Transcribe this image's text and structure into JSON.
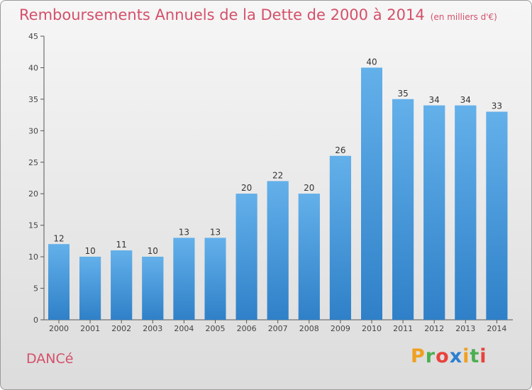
{
  "chart_data": {
    "type": "bar",
    "title": "Remboursements Annuels de la Dette de 2000 à 2014",
    "subtitle": "(en milliers d'€)",
    "categories": [
      "2000",
      "2001",
      "2002",
      "2003",
      "2004",
      "2005",
      "2006",
      "2007",
      "2008",
      "2009",
      "2010",
      "2011",
      "2012",
      "2013",
      "2014"
    ],
    "values": [
      12,
      10,
      11,
      10,
      13,
      13,
      20,
      22,
      20,
      26,
      40,
      35,
      34,
      34,
      33
    ],
    "ylim": [
      0,
      45
    ],
    "yticks": [
      0,
      5,
      10,
      15,
      20,
      25,
      30,
      35,
      40,
      45
    ],
    "grid": false,
    "bar_color": "#4f9bdc"
  },
  "place_name": "DANCé",
  "logo": {
    "letters": [
      "P",
      "r",
      "o",
      "x",
      "i",
      "t",
      "i"
    ],
    "colors": [
      "#f0a020",
      "#4caf50",
      "#e8423c",
      "#2b7fd0",
      "#f0a020",
      "#4caf50",
      "#e8423c"
    ]
  }
}
